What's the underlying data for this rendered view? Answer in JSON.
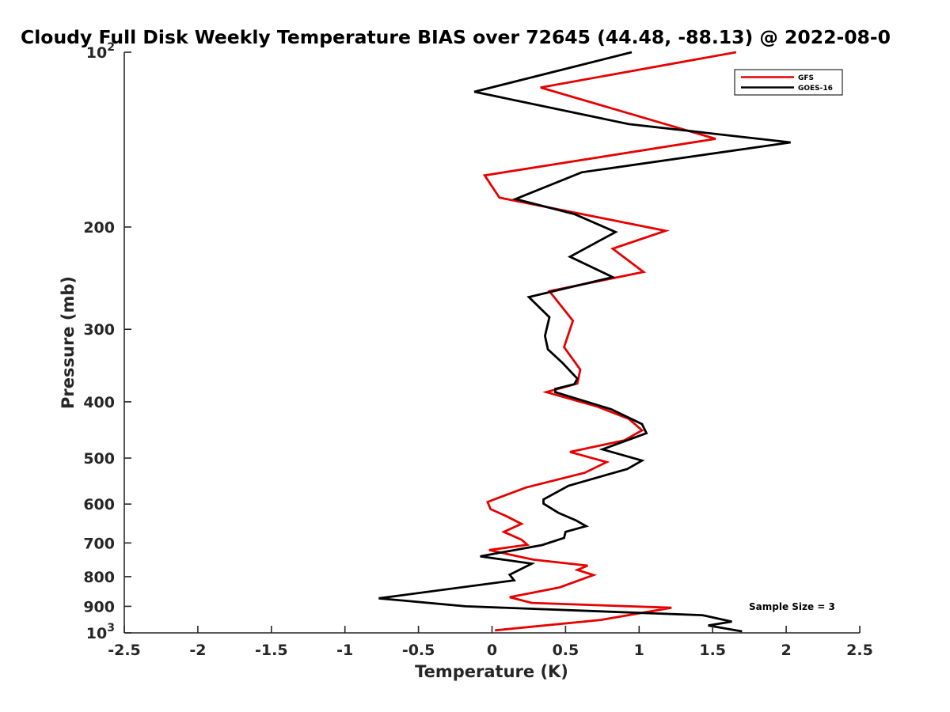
{
  "chart_data": {
    "type": "line",
    "title": "Cloudy Full Disk Weekly Temperature BIAS over 72645 (44.48, -88.13) @ 2022-08-0",
    "xlabel": "Temperature (K)",
    "ylabel": "Pressure (mb)",
    "xlim": [
      -2.5,
      2.5
    ],
    "ylim": [
      1000,
      100
    ],
    "y_scale": "log",
    "grid": false,
    "legend_position": "top-right",
    "x_ticks": [
      "-2.5",
      "-2",
      "-1.5",
      "-1",
      "-0.5",
      "0",
      "0.5",
      "1",
      "1.5",
      "2",
      "2.5"
    ],
    "y_ticks": [
      {
        "value": 100,
        "base": "10",
        "exp": "2"
      },
      {
        "value": 200,
        "label": "200"
      },
      {
        "value": 300,
        "label": "300"
      },
      {
        "value": 400,
        "label": "400"
      },
      {
        "value": 500,
        "label": "500"
      },
      {
        "value": 600,
        "label": "600"
      },
      {
        "value": 700,
        "label": "700"
      },
      {
        "value": 800,
        "label": "800"
      },
      {
        "value": 900,
        "label": "900"
      },
      {
        "value": 1000,
        "base": "10",
        "exp": "3"
      }
    ],
    "annotation": "Sample Size = 3",
    "series": [
      {
        "name": "GFS",
        "color": "#e60000",
        "points": [
          [
            1.66,
            100
          ],
          [
            0.33,
            115
          ],
          [
            1.52,
            141
          ],
          [
            -0.05,
            163
          ],
          [
            0.05,
            178
          ],
          [
            1.18,
            203
          ],
          [
            0.82,
            218
          ],
          [
            1.03,
            239
          ],
          [
            0.39,
            258
          ],
          [
            0.55,
            290
          ],
          [
            0.49,
            322
          ],
          [
            0.6,
            352
          ],
          [
            0.58,
            372
          ],
          [
            0.37,
            385
          ],
          [
            0.72,
            408
          ],
          [
            0.93,
            428
          ],
          [
            1.02,
            448
          ],
          [
            0.9,
            466
          ],
          [
            0.53,
            488
          ],
          [
            0.78,
            508
          ],
          [
            0.63,
            530
          ],
          [
            0.23,
            562
          ],
          [
            -0.03,
            595
          ],
          [
            -0.01,
            612
          ],
          [
            0.1,
            630
          ],
          [
            0.2,
            649
          ],
          [
            0.08,
            670
          ],
          [
            0.2,
            691
          ],
          [
            0.24,
            705
          ],
          [
            -0.02,
            720
          ],
          [
            0.28,
            748
          ],
          [
            0.65,
            766
          ],
          [
            0.58,
            779
          ],
          [
            0.69,
            795
          ],
          [
            0.46,
            835
          ],
          [
            0.12,
            868
          ],
          [
            0.27,
            888
          ],
          [
            1.22,
            905
          ],
          [
            0.74,
            950
          ],
          [
            0.02,
            990
          ]
        ]
      },
      {
        "name": "GOES-16",
        "color": "#000000",
        "points": [
          [
            0.95,
            100
          ],
          [
            -0.12,
            117
          ],
          [
            0.93,
            133
          ],
          [
            2.03,
            143
          ],
          [
            0.61,
            161
          ],
          [
            0.16,
            179
          ],
          [
            0.56,
            190
          ],
          [
            0.84,
            204
          ],
          [
            0.53,
            225
          ],
          [
            0.82,
            244
          ],
          [
            0.25,
            264
          ],
          [
            0.39,
            286
          ],
          [
            0.36,
            308
          ],
          [
            0.38,
            325
          ],
          [
            0.48,
            343
          ],
          [
            0.58,
            365
          ],
          [
            0.56,
            373
          ],
          [
            0.43,
            380
          ],
          [
            0.43,
            385
          ],
          [
            0.81,
            412
          ],
          [
            1.02,
            437
          ],
          [
            1.05,
            453
          ],
          [
            0.75,
            483
          ],
          [
            1.02,
            505
          ],
          [
            0.92,
            522
          ],
          [
            0.52,
            558
          ],
          [
            0.35,
            589
          ],
          [
            0.35,
            599
          ],
          [
            0.45,
            621
          ],
          [
            0.57,
            640
          ],
          [
            0.64,
            655
          ],
          [
            0.5,
            670
          ],
          [
            0.49,
            686
          ],
          [
            0.34,
            706
          ],
          [
            -0.08,
            738
          ],
          [
            0.27,
            760
          ],
          [
            0.12,
            794
          ],
          [
            0.15,
            812
          ],
          [
            -0.77,
            872
          ],
          [
            -0.18,
            900
          ],
          [
            1.43,
            932
          ],
          [
            1.63,
            956
          ],
          [
            1.47,
            971
          ],
          [
            1.7,
            994
          ]
        ]
      }
    ]
  }
}
